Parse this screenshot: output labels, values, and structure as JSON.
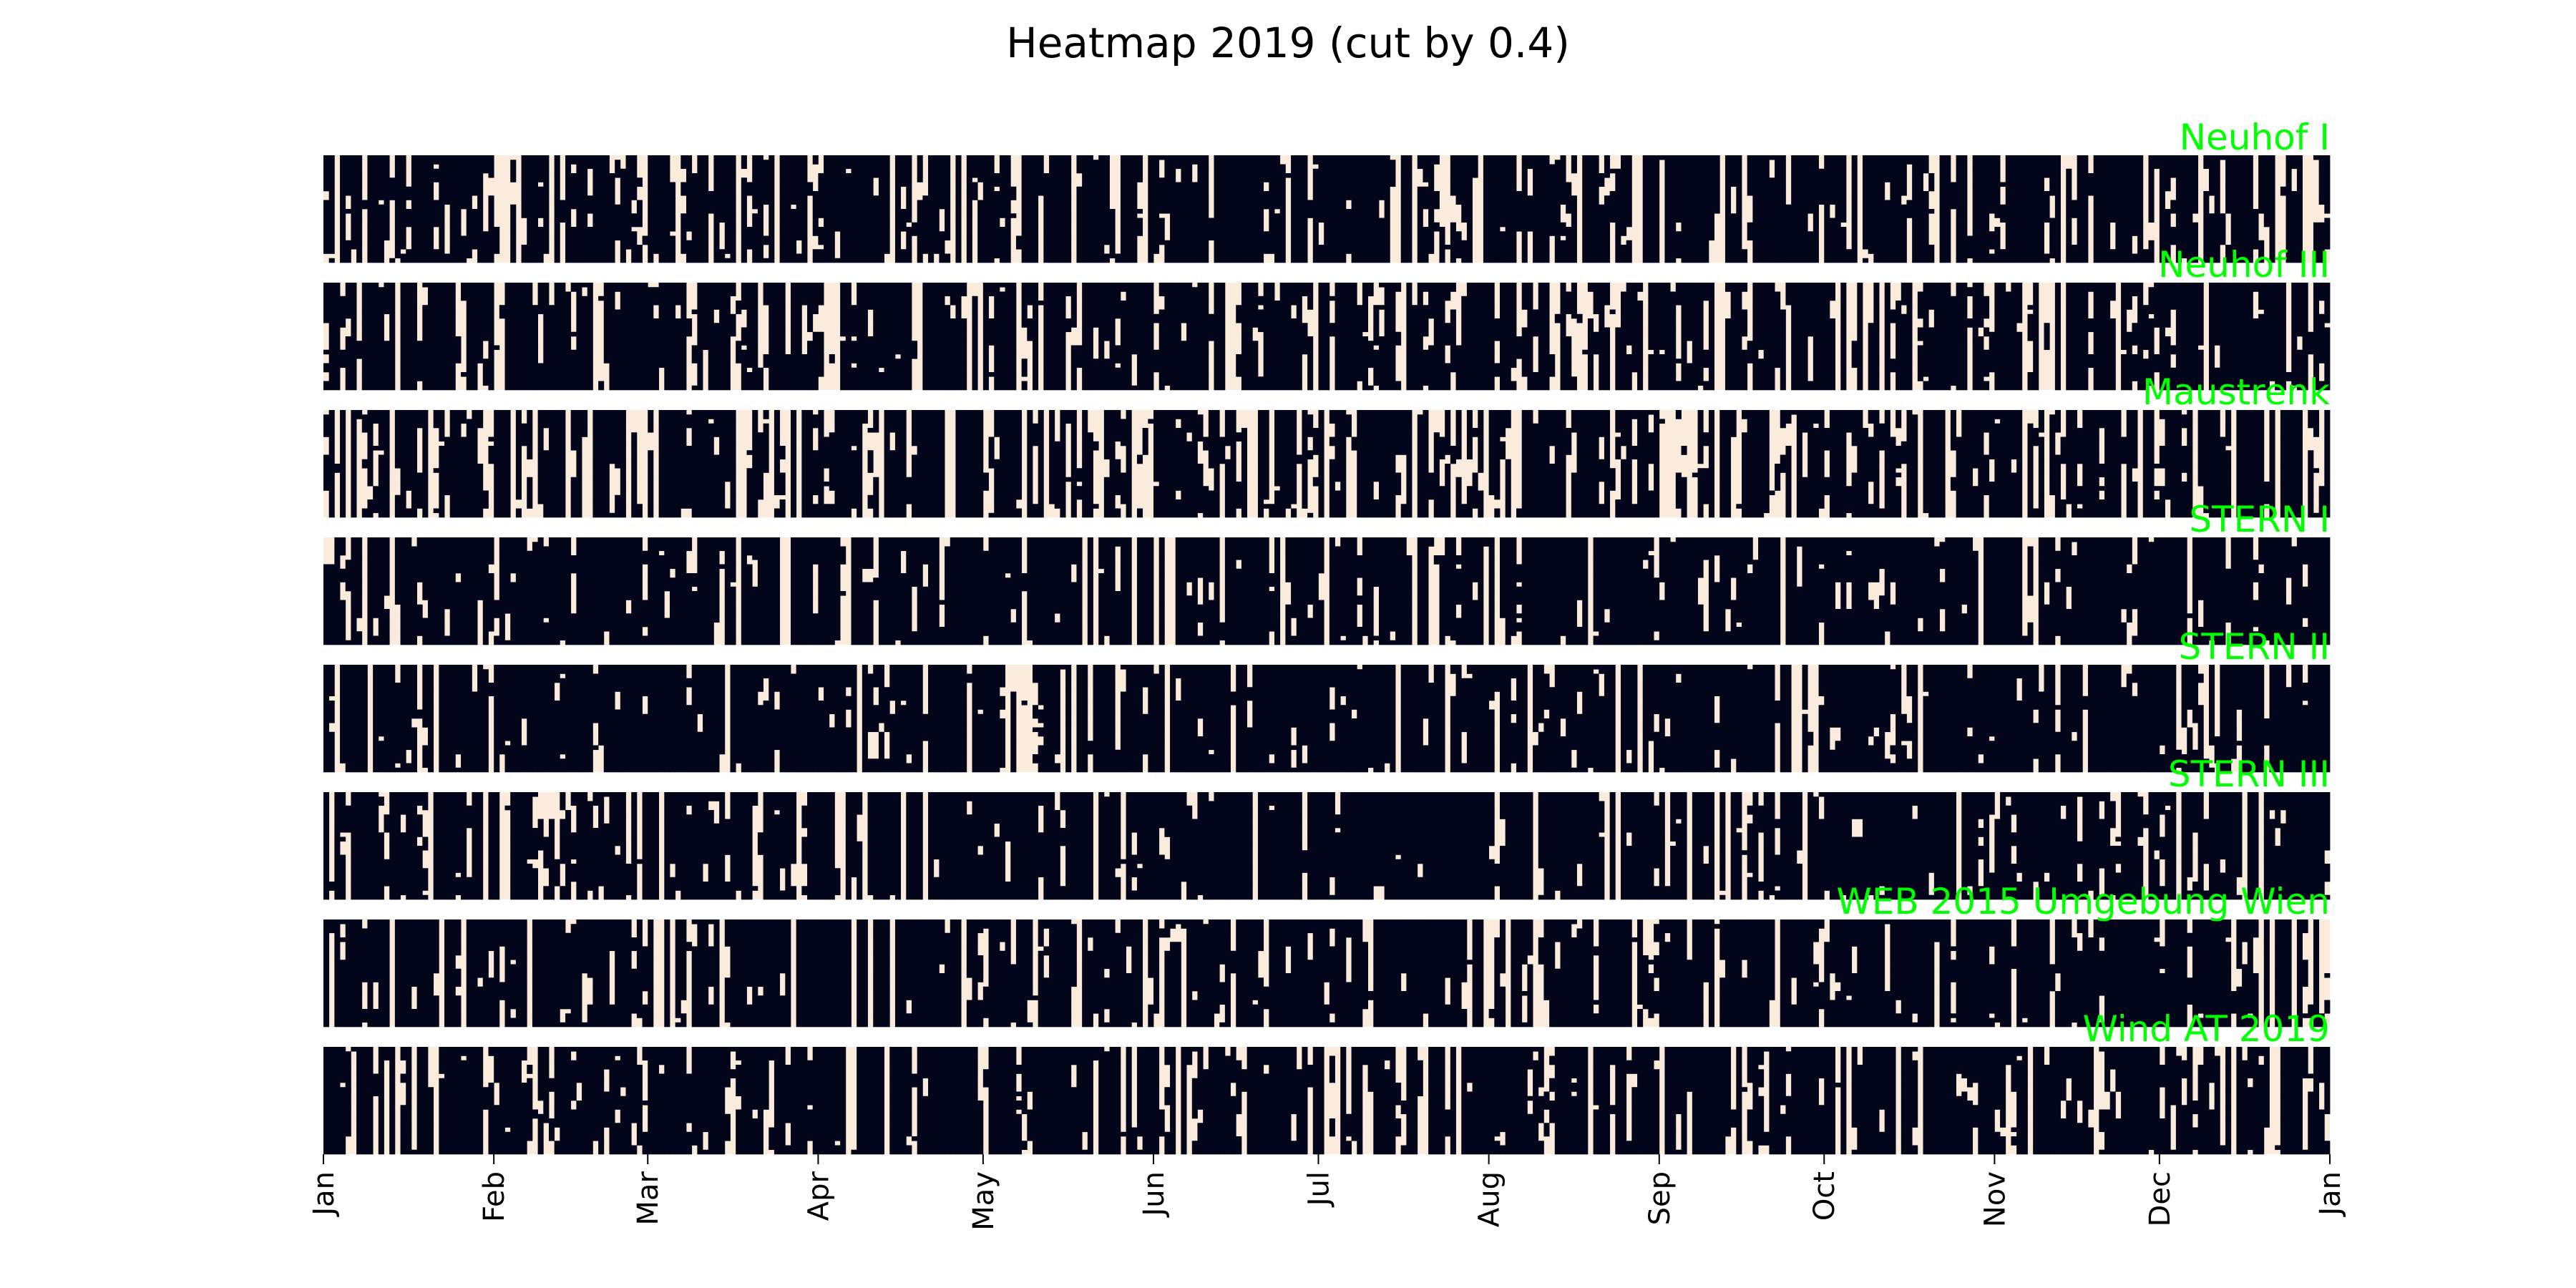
{
  "chart_data": {
    "type": "heatmap",
    "title": "Heatmap 2019 (cut by 0.4)",
    "xlabel": "",
    "ylabel": "",
    "year": 2019,
    "threshold": 0.4,
    "x_tick_labels": [
      "Jan",
      "Feb",
      "Mar",
      "Apr",
      "May",
      "Jun",
      "Jul",
      "Aug",
      "Sep",
      "Oct",
      "Nov",
      "Dec",
      "Jan"
    ],
    "colors": {
      "above_threshold": "#03051a",
      "below_threshold": "#faebdd",
      "series_label": "#00ff00"
    },
    "series": [
      {
        "name": "Neuhof I",
        "share_above_threshold": 0.66,
        "seed": 11
      },
      {
        "name": "Neuhof III",
        "share_above_threshold": 0.66,
        "seed": 23
      },
      {
        "name": "Maustrenk",
        "share_above_threshold": 0.6,
        "seed": 37
      },
      {
        "name": "STERN I",
        "share_above_threshold": 0.85,
        "seed": 41
      },
      {
        "name": "STERN II",
        "share_above_threshold": 0.84,
        "seed": 53
      },
      {
        "name": "STERN III",
        "share_above_threshold": 0.83,
        "seed": 67
      },
      {
        "name": "WEB 2015 Umgebung Wien",
        "share_above_threshold": 0.8,
        "seed": 79
      },
      {
        "name": "Wind AT 2019",
        "share_above_threshold": 0.74,
        "seed": 97
      }
    ]
  }
}
